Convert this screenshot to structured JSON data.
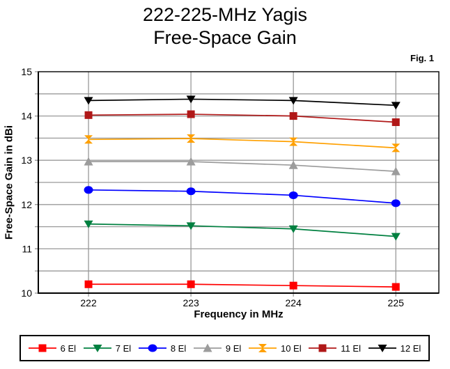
{
  "title": {
    "line1": "222-225-MHz Yagis",
    "line2": "Free-Space Gain"
  },
  "figure_label": "Fig. 1",
  "chart_data": {
    "type": "line",
    "title": "222-225-MHz Yagis Free-Space Gain",
    "xlabel": "Frequency in MHz",
    "ylabel": "Free-Space Gain in dBi",
    "x": [
      222,
      223,
      224,
      225
    ],
    "x_tick_labels": [
      "222",
      "223",
      "224",
      "225"
    ],
    "xlim": [
      221.51,
      225.42
    ],
    "ylim": [
      10,
      15
    ],
    "y_major_ticks": [
      10,
      11,
      12,
      13,
      14,
      15
    ],
    "y_minor_step": 0.5,
    "grid": true,
    "legend_position": "bottom",
    "colors": {
      "gridline": "#999999",
      "axis": "#000000",
      "background": "#ffffff"
    },
    "series": [
      {
        "name": "6 El",
        "marker": "square",
        "color": "#FF0000",
        "values": [
          10.2,
          10.2,
          10.17,
          10.14
        ]
      },
      {
        "name": "7 El",
        "marker": "triangle-down",
        "color": "#008040",
        "values": [
          11.56,
          11.52,
          11.45,
          11.28
        ]
      },
      {
        "name": "8 El",
        "marker": "circle",
        "color": "#0000FF",
        "values": [
          12.33,
          12.3,
          12.21,
          12.03
        ]
      },
      {
        "name": "9 El",
        "marker": "triangle-up",
        "color": "#9C9C9C",
        "values": [
          12.97,
          12.97,
          12.89,
          12.75
        ]
      },
      {
        "name": "10 El",
        "marker": "hourglass",
        "color": "#FFA000",
        "values": [
          13.47,
          13.49,
          13.42,
          13.28
        ]
      },
      {
        "name": "11 El",
        "marker": "square",
        "color": "#B01818",
        "values": [
          14.02,
          14.04,
          14.0,
          13.86
        ]
      },
      {
        "name": "12 El",
        "marker": "triangle-down",
        "color": "#000000",
        "values": [
          14.35,
          14.38,
          14.35,
          14.24
        ]
      }
    ]
  }
}
